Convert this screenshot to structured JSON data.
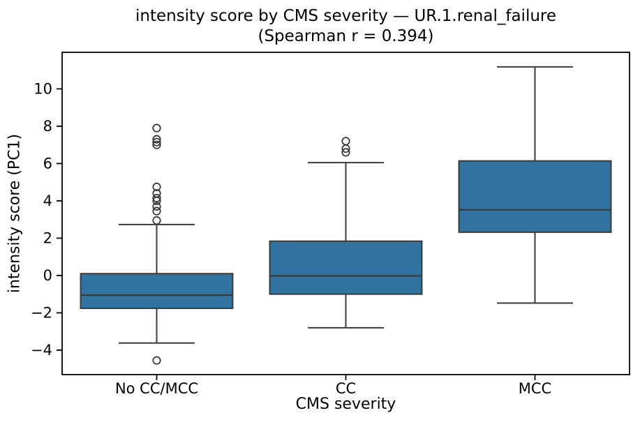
{
  "figure": {
    "title_line1": "intensity score by CMS severity — UR.1.renal_failure",
    "title_line2": "(Spearman r = 0.394)"
  },
  "chart_data": {
    "type": "box",
    "title": "intensity score by CMS severity — UR.1.renal_failure (Spearman r = 0.394)",
    "title_line1": "intensity score by CMS severity — UR.1.renal_failure",
    "title_line2": "(Spearman r = 0.394)",
    "xlabel": "CMS severity",
    "ylabel": "intensity score (PC1)",
    "categories": [
      "No CC/MCC",
      "CC",
      "MCC"
    ],
    "ylim": [
      -5.31,
      11.96
    ],
    "yticks": [
      -4,
      -2,
      0,
      2,
      4,
      6,
      8,
      10
    ],
    "ytick_labels": [
      "−4",
      "−2",
      "0",
      "2",
      "4",
      "6",
      "8",
      "10"
    ],
    "grid": false,
    "legend_position": "none",
    "colors": {
      "box_fill": "#3274A1",
      "box_line": "#3A3A3A",
      "spine": "#000000",
      "outlier_stroke": "#3A3A3A"
    },
    "series": [
      {
        "label": "No CC/MCC",
        "whisker_low": -3.62,
        "q1": -1.76,
        "median": -1.05,
        "q3": 0.1,
        "whisker_high": 2.73,
        "outliers": [
          7.9,
          7.3,
          7.15,
          7.0,
          4.75,
          4.4,
          4.15,
          4.0,
          3.7,
          3.45,
          2.95,
          -4.55
        ]
      },
      {
        "label": "CC",
        "whisker_low": -2.8,
        "q1": -1.0,
        "median": -0.02,
        "q3": 1.84,
        "whisker_high": 6.05,
        "outliers": [
          7.2,
          6.8,
          6.6
        ]
      },
      {
        "label": "MCC",
        "whisker_low": -1.48,
        "q1": 2.32,
        "median": 3.52,
        "q3": 6.14,
        "whisker_high": 11.18,
        "outliers": []
      }
    ]
  }
}
